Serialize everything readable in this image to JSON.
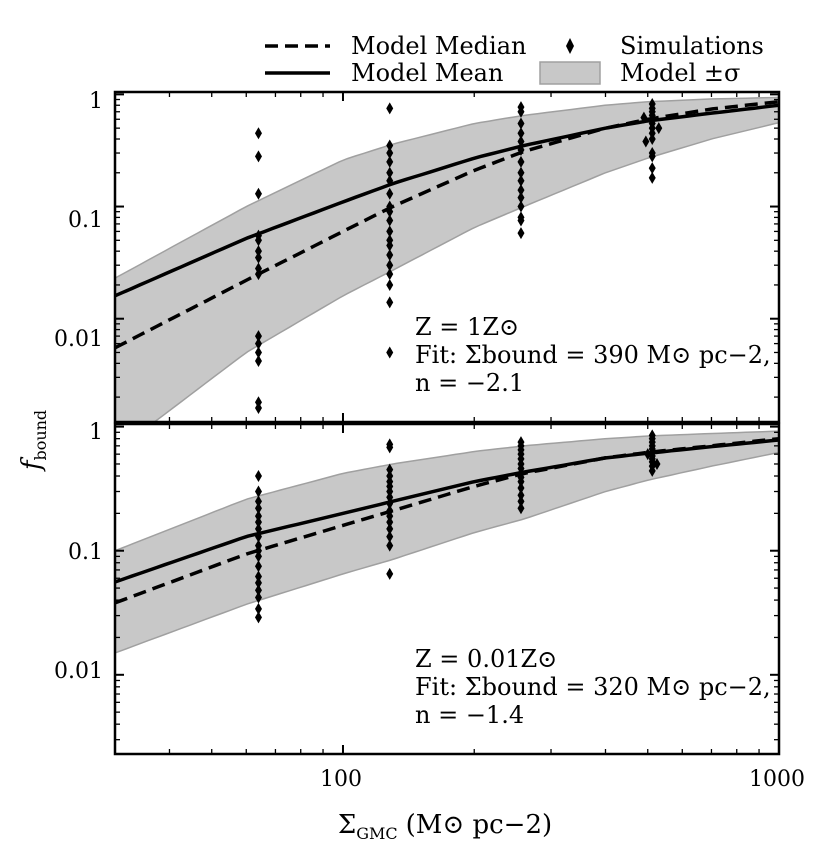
{
  "chart_data": [
    {
      "type": "line",
      "panel": "top",
      "xscale": "log",
      "yscale": "log",
      "xlim": [
        30,
        1000
      ],
      "ylim": [
        0.0012,
        1.05
      ],
      "yticks": [
        1,
        0.1,
        0.01
      ],
      "ytick_labels": [
        "1",
        "0.1",
        "0.01"
      ],
      "series": [
        {
          "name": "Model Median",
          "style": "dashed",
          "x": [
            30,
            60,
            100,
            130,
            200,
            260,
            400,
            500,
            700,
            1000
          ],
          "y": [
            0.0055,
            0.022,
            0.06,
            0.1,
            0.21,
            0.31,
            0.5,
            0.6,
            0.74,
            0.86
          ]
        },
        {
          "name": "Model Mean",
          "style": "solid",
          "x": [
            30,
            60,
            100,
            130,
            200,
            260,
            400,
            500,
            700,
            1000
          ],
          "y": [
            0.016,
            0.052,
            0.11,
            0.16,
            0.27,
            0.35,
            0.5,
            0.58,
            0.68,
            0.8
          ]
        },
        {
          "name": "Model ±σ",
          "style": "band",
          "x": [
            30,
            60,
            100,
            130,
            200,
            260,
            400,
            500,
            700,
            1000
          ],
          "upper": [
            0.023,
            0.1,
            0.26,
            0.36,
            0.55,
            0.65,
            0.8,
            0.86,
            0.91,
            0.94
          ],
          "lower": [
            0.00065,
            0.005,
            0.016,
            0.027,
            0.065,
            0.1,
            0.2,
            0.27,
            0.4,
            0.56
          ]
        }
      ],
      "scatter": {
        "name": "Simulations",
        "points": [
          [
            64,
            0.45
          ],
          [
            64,
            0.28
          ],
          [
            64,
            0.13
          ],
          [
            64,
            0.055
          ],
          [
            64,
            0.05
          ],
          [
            64,
            0.04
          ],
          [
            64,
            0.035
          ],
          [
            64,
            0.028
          ],
          [
            64,
            0.025
          ],
          [
            64,
            0.007
          ],
          [
            64,
            0.006
          ],
          [
            64,
            0.005
          ],
          [
            64,
            0.0042
          ],
          [
            64,
            0.0018
          ],
          [
            64,
            0.0016
          ],
          [
            128,
            0.75
          ],
          [
            128,
            0.35
          ],
          [
            128,
            0.3
          ],
          [
            128,
            0.25
          ],
          [
            128,
            0.2
          ],
          [
            128,
            0.17
          ],
          [
            128,
            0.13
          ],
          [
            128,
            0.1
          ],
          [
            128,
            0.09
          ],
          [
            128,
            0.075
          ],
          [
            128,
            0.06
          ],
          [
            128,
            0.05
          ],
          [
            128,
            0.045
          ],
          [
            128,
            0.037
          ],
          [
            128,
            0.03
          ],
          [
            128,
            0.025
          ],
          [
            128,
            0.02
          ],
          [
            128,
            0.014
          ],
          [
            128,
            0.005
          ],
          [
            256,
            0.77
          ],
          [
            256,
            0.7
          ],
          [
            256,
            0.55
          ],
          [
            256,
            0.45
          ],
          [
            256,
            0.38
          ],
          [
            256,
            0.32
          ],
          [
            256,
            0.25
          ],
          [
            256,
            0.2
          ],
          [
            256,
            0.17
          ],
          [
            256,
            0.14
          ],
          [
            256,
            0.12
          ],
          [
            256,
            0.1
          ],
          [
            256,
            0.08
          ],
          [
            256,
            0.075
          ],
          [
            256,
            0.058
          ],
          [
            512,
            0.82
          ],
          [
            512,
            0.75
          ],
          [
            512,
            0.7
          ],
          [
            512,
            0.65
          ],
          [
            512,
            0.6
          ],
          [
            512,
            0.55
          ],
          [
            512,
            0.5
          ],
          [
            512,
            0.45
          ],
          [
            512,
            0.4
          ],
          [
            512,
            0.3
          ],
          [
            512,
            0.28
          ],
          [
            512,
            0.22
          ],
          [
            512,
            0.18
          ],
          [
            490,
            0.62
          ],
          [
            530,
            0.5
          ],
          [
            495,
            0.38
          ]
        ]
      },
      "annotation": {
        "line1": "Z = 1Z⊙",
        "line2": "Fit: Σbound = 390 M⊙ pc−2,",
        "line3": "n = −2.1"
      }
    },
    {
      "type": "line",
      "panel": "bottom",
      "xscale": "log",
      "yscale": "log",
      "xlim": [
        30,
        1000
      ],
      "ylim": [
        0.0023,
        1.05
      ],
      "yticks": [
        1,
        0.1,
        0.01
      ],
      "ytick_labels": [
        "1",
        "0.1",
        "0.01"
      ],
      "series": [
        {
          "name": "Model Median",
          "style": "dashed",
          "x": [
            30,
            60,
            100,
            130,
            200,
            260,
            400,
            500,
            700,
            1000
          ],
          "y": [
            0.038,
            0.094,
            0.16,
            0.21,
            0.33,
            0.42,
            0.56,
            0.62,
            0.7,
            0.8
          ]
        },
        {
          "name": "Model Mean",
          "style": "solid",
          "x": [
            30,
            60,
            100,
            130,
            200,
            260,
            400,
            500,
            700,
            1000
          ],
          "y": [
            0.056,
            0.13,
            0.2,
            0.25,
            0.36,
            0.43,
            0.56,
            0.61,
            0.69,
            0.78
          ]
        },
        {
          "name": "Model ±σ",
          "style": "band",
          "x": [
            30,
            60,
            100,
            130,
            200,
            260,
            400,
            500,
            700,
            1000
          ],
          "upper": [
            0.1,
            0.26,
            0.42,
            0.5,
            0.63,
            0.7,
            0.8,
            0.84,
            0.88,
            0.92
          ],
          "lower": [
            0.015,
            0.037,
            0.065,
            0.085,
            0.14,
            0.18,
            0.3,
            0.37,
            0.48,
            0.62
          ]
        }
      ],
      "scatter": {
        "name": "Simulations",
        "points": [
          [
            64,
            0.4
          ],
          [
            64,
            0.3
          ],
          [
            64,
            0.25
          ],
          [
            64,
            0.22
          ],
          [
            64,
            0.19
          ],
          [
            64,
            0.17
          ],
          [
            64,
            0.15
          ],
          [
            64,
            0.13
          ],
          [
            64,
            0.11
          ],
          [
            64,
            0.1
          ],
          [
            64,
            0.09
          ],
          [
            64,
            0.075
          ],
          [
            64,
            0.062
          ],
          [
            64,
            0.055
          ],
          [
            64,
            0.048
          ],
          [
            64,
            0.042
          ],
          [
            64,
            0.034
          ],
          [
            64,
            0.029
          ],
          [
            128,
            0.72
          ],
          [
            128,
            0.68
          ],
          [
            128,
            0.45
          ],
          [
            128,
            0.4
          ],
          [
            128,
            0.36
          ],
          [
            128,
            0.33
          ],
          [
            128,
            0.3
          ],
          [
            128,
            0.27
          ],
          [
            128,
            0.24
          ],
          [
            128,
            0.21
          ],
          [
            128,
            0.19
          ],
          [
            128,
            0.17
          ],
          [
            128,
            0.15
          ],
          [
            128,
            0.13
          ],
          [
            128,
            0.11
          ],
          [
            128,
            0.065
          ],
          [
            256,
            0.75
          ],
          [
            256,
            0.7
          ],
          [
            256,
            0.65
          ],
          [
            256,
            0.6
          ],
          [
            256,
            0.55
          ],
          [
            256,
            0.5
          ],
          [
            256,
            0.46
          ],
          [
            256,
            0.42
          ],
          [
            256,
            0.39
          ],
          [
            256,
            0.36
          ],
          [
            256,
            0.32
          ],
          [
            256,
            0.28
          ],
          [
            256,
            0.25
          ],
          [
            256,
            0.22
          ],
          [
            512,
            0.85
          ],
          [
            512,
            0.8
          ],
          [
            512,
            0.75
          ],
          [
            512,
            0.7
          ],
          [
            512,
            0.66
          ],
          [
            512,
            0.62
          ],
          [
            512,
            0.58
          ],
          [
            512,
            0.55
          ],
          [
            512,
            0.52
          ],
          [
            512,
            0.48
          ],
          [
            512,
            0.44
          ],
          [
            500,
            0.6
          ],
          [
            525,
            0.5
          ]
        ]
      },
      "annotation": {
        "line1": "Z = 0.01Z⊙",
        "line2": "Fit: Σbound = 320 M⊙ pc−2,",
        "line3": "n = −1.4"
      }
    }
  ],
  "xticks": [
    100,
    1000
  ],
  "xtick_labels": [
    "100",
    "1000"
  ],
  "xlabel": {
    "main": "Σ",
    "sub": "GMC",
    "units": "(M⊙ pc−2)"
  },
  "ylabel": {
    "main": "f",
    "sub": "bound"
  },
  "legend": {
    "items": [
      {
        "label": "Model Median",
        "style": "dashed"
      },
      {
        "label": "Simulations",
        "style": "marker"
      },
      {
        "label": "Model Mean",
        "style": "solid"
      },
      {
        "label": "Model ±σ",
        "style": "band"
      }
    ]
  },
  "colors": {
    "band": "#c8c8c8",
    "band_edge": "#a0a0a0",
    "line": "#000000"
  }
}
